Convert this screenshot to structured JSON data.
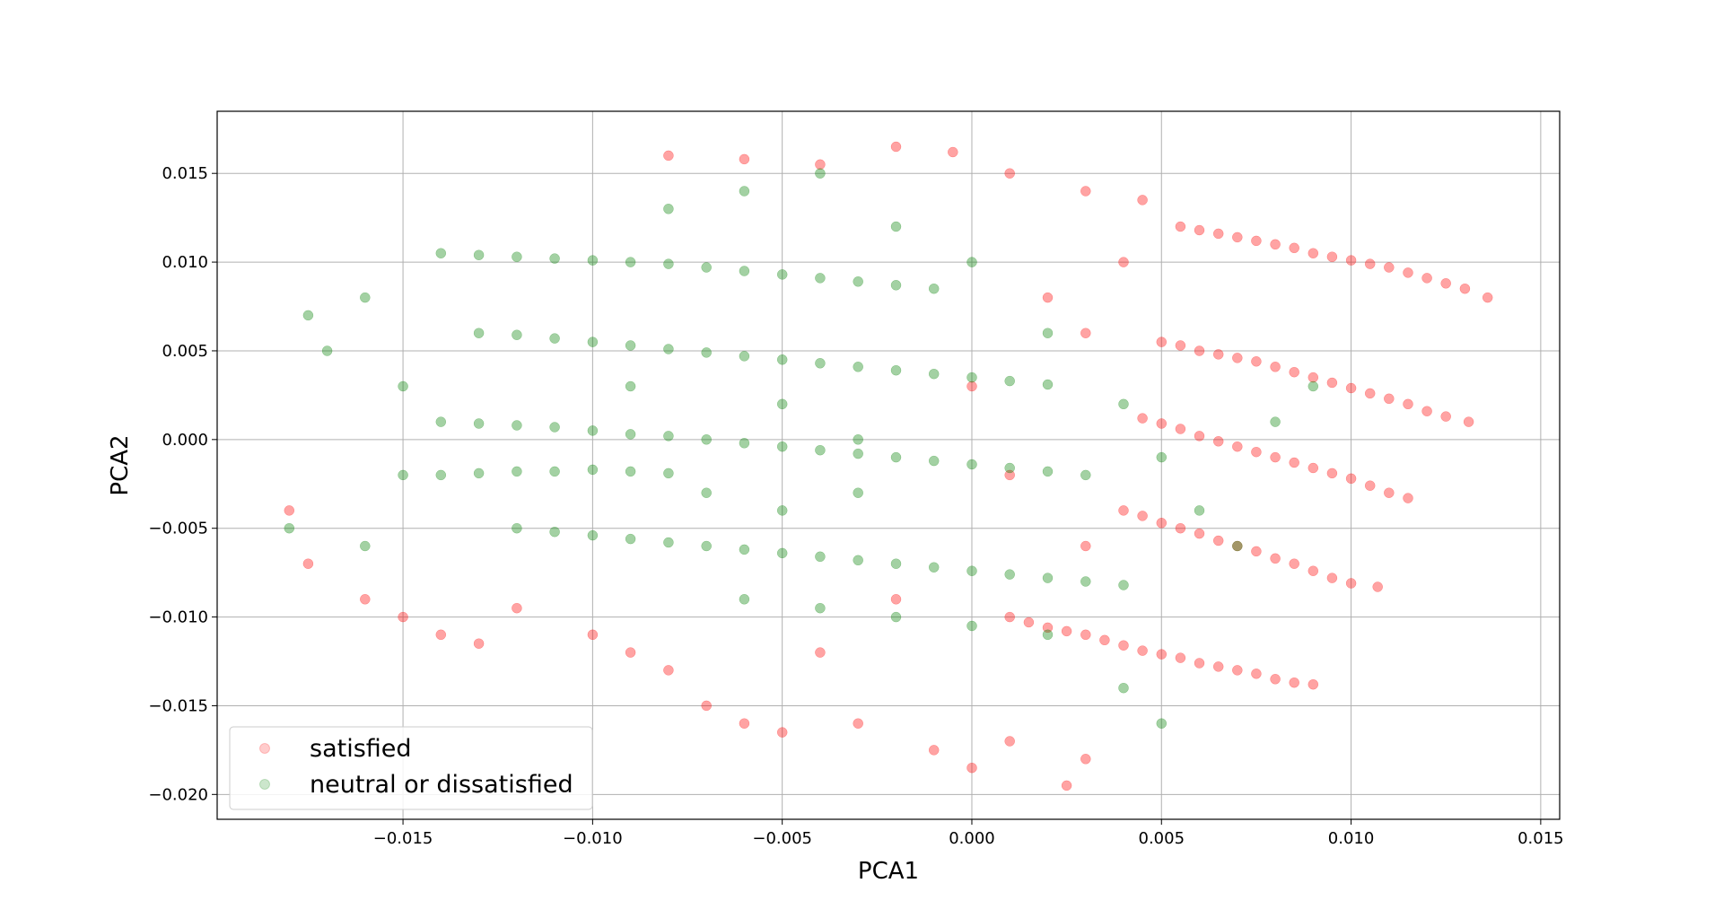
{
  "chart_data": {
    "type": "scatter",
    "title": "",
    "xlabel": "PCA1",
    "ylabel": "PCA2",
    "xlim": [
      -0.0199,
      0.0155
    ],
    "ylim": [
      -0.0214,
      0.0185
    ],
    "xticks": [
      -0.015,
      -0.01,
      -0.005,
      0.0,
      0.005,
      0.01,
      0.015
    ],
    "xtick_labels": [
      "−0.015",
      "−0.010",
      "−0.005",
      "0.000",
      "0.005",
      "0.010",
      "0.015"
    ],
    "yticks": [
      -0.02,
      -0.015,
      -0.01,
      -0.005,
      0.0,
      0.005,
      0.01,
      0.015
    ],
    "ytick_labels": [
      "−0.020",
      "−0.015",
      "−0.010",
      "−0.005",
      "0.000",
      "0.005",
      "0.010",
      "0.015"
    ],
    "grid": true,
    "legend_position": "lower-left",
    "series": [
      {
        "name": "satisfied",
        "color": "#ff0000",
        "alpha": 0.12,
        "points": [
          [
            0.0055,
            0.012
          ],
          [
            0.006,
            0.0118
          ],
          [
            0.0065,
            0.0116
          ],
          [
            0.007,
            0.0114
          ],
          [
            0.0075,
            0.0112
          ],
          [
            0.008,
            0.011
          ],
          [
            0.0085,
            0.0108
          ],
          [
            0.009,
            0.0105
          ],
          [
            0.0095,
            0.0103
          ],
          [
            0.01,
            0.0101
          ],
          [
            0.0105,
            0.0099
          ],
          [
            0.011,
            0.0097
          ],
          [
            0.0115,
            0.0094
          ],
          [
            0.012,
            0.0091
          ],
          [
            0.0125,
            0.0088
          ],
          [
            0.013,
            0.0085
          ],
          [
            0.0136,
            0.008
          ],
          [
            0.005,
            0.0055
          ],
          [
            0.0055,
            0.0053
          ],
          [
            0.006,
            0.005
          ],
          [
            0.0065,
            0.0048
          ],
          [
            0.007,
            0.0046
          ],
          [
            0.0075,
            0.0044
          ],
          [
            0.008,
            0.0041
          ],
          [
            0.0085,
            0.0038
          ],
          [
            0.009,
            0.0035
          ],
          [
            0.0095,
            0.0032
          ],
          [
            0.01,
            0.0029
          ],
          [
            0.0105,
            0.0026
          ],
          [
            0.011,
            0.0023
          ],
          [
            0.0115,
            0.002
          ],
          [
            0.012,
            0.0016
          ],
          [
            0.0125,
            0.0013
          ],
          [
            0.0131,
            0.001
          ],
          [
            0.0045,
            0.0012
          ],
          [
            0.005,
            0.0009
          ],
          [
            0.0055,
            0.0006
          ],
          [
            0.006,
            0.0002
          ],
          [
            0.0065,
            -0.0001
          ],
          [
            0.007,
            -0.0004
          ],
          [
            0.0075,
            -0.0007
          ],
          [
            0.008,
            -0.001
          ],
          [
            0.0085,
            -0.0013
          ],
          [
            0.009,
            -0.0016
          ],
          [
            0.0095,
            -0.0019
          ],
          [
            0.01,
            -0.0022
          ],
          [
            0.0105,
            -0.0026
          ],
          [
            0.011,
            -0.003
          ],
          [
            0.0115,
            -0.0033
          ],
          [
            0.004,
            -0.004
          ],
          [
            0.0045,
            -0.0043
          ],
          [
            0.005,
            -0.0047
          ],
          [
            0.0055,
            -0.005
          ],
          [
            0.006,
            -0.0053
          ],
          [
            0.0065,
            -0.0057
          ],
          [
            0.007,
            -0.006
          ],
          [
            0.0075,
            -0.0063
          ],
          [
            0.008,
            -0.0067
          ],
          [
            0.0085,
            -0.007
          ],
          [
            0.009,
            -0.0074
          ],
          [
            0.0095,
            -0.0078
          ],
          [
            0.01,
            -0.0081
          ],
          [
            0.0107,
            -0.0083
          ],
          [
            0.001,
            -0.01
          ],
          [
            0.0015,
            -0.0103
          ],
          [
            0.002,
            -0.0106
          ],
          [
            0.0025,
            -0.0108
          ],
          [
            0.003,
            -0.011
          ],
          [
            0.0035,
            -0.0113
          ],
          [
            0.004,
            -0.0116
          ],
          [
            0.0045,
            -0.0119
          ],
          [
            0.005,
            -0.0121
          ],
          [
            0.0055,
            -0.0123
          ],
          [
            0.006,
            -0.0126
          ],
          [
            0.0065,
            -0.0128
          ],
          [
            0.007,
            -0.013
          ],
          [
            0.0075,
            -0.0132
          ],
          [
            0.008,
            -0.0135
          ],
          [
            0.0085,
            -0.0137
          ],
          [
            0.009,
            -0.0138
          ],
          [
            -0.01,
            -0.011
          ],
          [
            -0.009,
            -0.012
          ],
          [
            -0.008,
            -0.013
          ],
          [
            -0.007,
            -0.015
          ],
          [
            -0.006,
            -0.016
          ],
          [
            -0.005,
            -0.0165
          ],
          [
            -0.003,
            -0.016
          ],
          [
            -0.001,
            -0.0175
          ],
          [
            0.0,
            -0.0185
          ],
          [
            0.001,
            -0.017
          ],
          [
            0.0025,
            -0.0195
          ],
          [
            0.003,
            -0.018
          ],
          [
            -0.008,
            0.016
          ],
          [
            -0.006,
            0.0158
          ],
          [
            -0.004,
            0.0155
          ],
          [
            -0.002,
            0.0165
          ],
          [
            -0.0005,
            0.0162
          ],
          [
            0.001,
            0.015
          ],
          [
            0.003,
            0.014
          ],
          [
            0.0045,
            0.0135
          ],
          [
            -0.018,
            -0.004
          ],
          [
            -0.0175,
            -0.007
          ],
          [
            -0.016,
            -0.009
          ],
          [
            -0.015,
            -0.01
          ],
          [
            -0.014,
            -0.011
          ],
          [
            -0.013,
            -0.0115
          ],
          [
            -0.012,
            -0.0095
          ],
          [
            0.002,
            0.008
          ],
          [
            0.003,
            0.006
          ],
          [
            0.0,
            0.003
          ],
          [
            0.001,
            -0.002
          ],
          [
            0.003,
            -0.006
          ],
          [
            -0.002,
            -0.009
          ],
          [
            -0.004,
            -0.012
          ],
          [
            0.004,
            0.01
          ]
        ]
      },
      {
        "name": "neutral or dissatisfied",
        "color": "#008000",
        "alpha": 0.12,
        "points": [
          [
            -0.014,
            0.0105
          ],
          [
            -0.013,
            0.0104
          ],
          [
            -0.012,
            0.0103
          ],
          [
            -0.011,
            0.0102
          ],
          [
            -0.01,
            0.0101
          ],
          [
            -0.009,
            0.01
          ],
          [
            -0.008,
            0.0099
          ],
          [
            -0.007,
            0.0097
          ],
          [
            -0.006,
            0.0095
          ],
          [
            -0.005,
            0.0093
          ],
          [
            -0.004,
            0.0091
          ],
          [
            -0.003,
            0.0089
          ],
          [
            -0.002,
            0.0087
          ],
          [
            -0.001,
            0.0085
          ],
          [
            -0.013,
            0.006
          ],
          [
            -0.012,
            0.0059
          ],
          [
            -0.011,
            0.0057
          ],
          [
            -0.01,
            0.0055
          ],
          [
            -0.009,
            0.0053
          ],
          [
            -0.008,
            0.0051
          ],
          [
            -0.007,
            0.0049
          ],
          [
            -0.006,
            0.0047
          ],
          [
            -0.005,
            0.0045
          ],
          [
            -0.004,
            0.0043
          ],
          [
            -0.003,
            0.0041
          ],
          [
            -0.002,
            0.0039
          ],
          [
            -0.001,
            0.0037
          ],
          [
            0.0,
            0.0035
          ],
          [
            0.001,
            0.0033
          ],
          [
            0.002,
            0.0031
          ],
          [
            -0.014,
            0.001
          ],
          [
            -0.013,
            0.0009
          ],
          [
            -0.012,
            0.0008
          ],
          [
            -0.011,
            0.0007
          ],
          [
            -0.01,
            0.0005
          ],
          [
            -0.009,
            0.0003
          ],
          [
            -0.008,
            0.0002
          ],
          [
            -0.007,
            0.0
          ],
          [
            -0.006,
            -0.0002
          ],
          [
            -0.005,
            -0.0004
          ],
          [
            -0.004,
            -0.0006
          ],
          [
            -0.003,
            -0.0008
          ],
          [
            -0.002,
            -0.001
          ],
          [
            -0.001,
            -0.0012
          ],
          [
            0.0,
            -0.0014
          ],
          [
            0.001,
            -0.0016
          ],
          [
            0.002,
            -0.0018
          ],
          [
            0.003,
            -0.002
          ],
          [
            -0.015,
            -0.002
          ],
          [
            -0.014,
            -0.002
          ],
          [
            -0.013,
            -0.0019
          ],
          [
            -0.012,
            -0.0018
          ],
          [
            -0.011,
            -0.0018
          ],
          [
            -0.01,
            -0.0017
          ],
          [
            -0.009,
            -0.0018
          ],
          [
            -0.008,
            -0.0019
          ],
          [
            -0.012,
            -0.005
          ],
          [
            -0.011,
            -0.0052
          ],
          [
            -0.01,
            -0.0054
          ],
          [
            -0.009,
            -0.0056
          ],
          [
            -0.008,
            -0.0058
          ],
          [
            -0.007,
            -0.006
          ],
          [
            -0.006,
            -0.0062
          ],
          [
            -0.005,
            -0.0064
          ],
          [
            -0.004,
            -0.0066
          ],
          [
            -0.003,
            -0.0068
          ],
          [
            -0.002,
            -0.007
          ],
          [
            -0.001,
            -0.0072
          ],
          [
            0.0,
            -0.0074
          ],
          [
            0.001,
            -0.0076
          ],
          [
            0.002,
            -0.0078
          ],
          [
            0.003,
            -0.008
          ],
          [
            0.004,
            -0.0082
          ],
          [
            -0.006,
            -0.009
          ],
          [
            -0.004,
            -0.0095
          ],
          [
            -0.002,
            -0.01
          ],
          [
            0.0,
            -0.0105
          ],
          [
            0.002,
            -0.011
          ],
          [
            0.004,
            -0.014
          ],
          [
            0.005,
            -0.016
          ],
          [
            -0.0175,
            0.007
          ],
          [
            -0.017,
            0.005
          ],
          [
            -0.016,
            0.008
          ],
          [
            -0.018,
            -0.005
          ],
          [
            -0.016,
            -0.006
          ],
          [
            -0.015,
            0.003
          ],
          [
            -0.008,
            0.013
          ],
          [
            -0.006,
            0.014
          ],
          [
            -0.004,
            0.015
          ],
          [
            -0.002,
            0.012
          ],
          [
            0.0,
            0.01
          ],
          [
            0.002,
            0.006
          ],
          [
            0.004,
            0.002
          ],
          [
            0.005,
            -0.001
          ],
          [
            0.006,
            -0.004
          ],
          [
            0.007,
            -0.006
          ],
          [
            0.008,
            0.001
          ],
          [
            0.009,
            0.003
          ],
          [
            -0.005,
            0.002
          ],
          [
            -0.003,
            0.0
          ],
          [
            -0.007,
            -0.003
          ],
          [
            -0.005,
            -0.004
          ],
          [
            -0.003,
            -0.003
          ],
          [
            -0.009,
            0.003
          ]
        ]
      }
    ]
  }
}
